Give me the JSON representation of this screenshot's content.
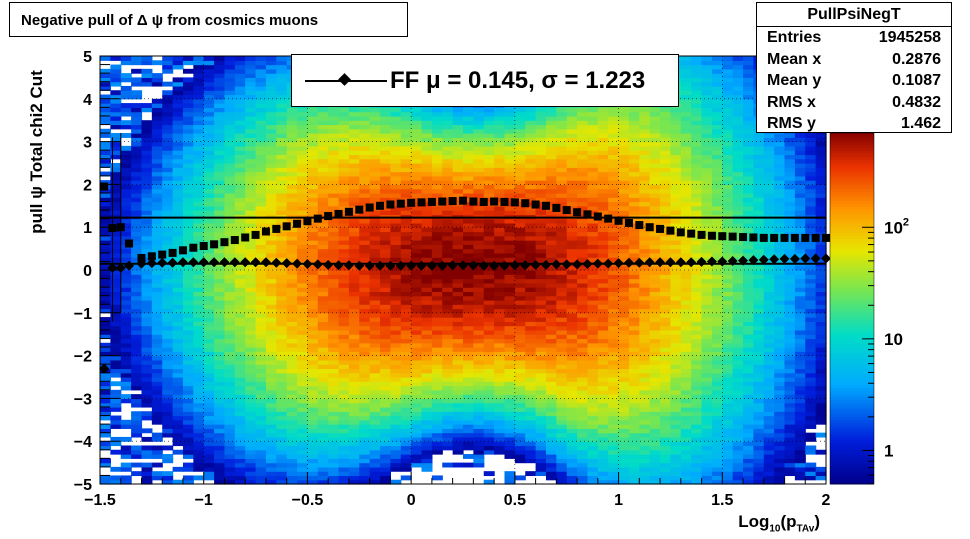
{
  "title": "Negative pull of Δ ψ from cosmics muons",
  "stats": {
    "name": "PullPsiNegT",
    "rows": [
      {
        "label": "Entries",
        "value": "1945258"
      },
      {
        "label": "Mean x",
        "value": "0.2876"
      },
      {
        "label": "Mean y",
        "value": "0.1087"
      },
      {
        "label": "RMS x",
        "value": "0.4832"
      },
      {
        "label": "RMS y",
        "value": "1.462"
      }
    ]
  },
  "legend": {
    "label": "FF μ =  0.145, σ =   1.223"
  },
  "axes": {
    "ylabel": "pull ψ    Total chi2 Cut",
    "xlabel_main": "Log",
    "xlabel_sub": "10",
    "xlabel_rest": "(p",
    "xlabel_sub2": "TAv",
    "xlabel_end": ")"
  },
  "chart_data": {
    "type": "heatmap",
    "xlim": [
      -1.5,
      2
    ],
    "ylim": [
      -5,
      5
    ],
    "x_ticks": [
      "−1.5",
      "−1",
      "−0.5",
      "0",
      "0.5",
      "1",
      "1.5",
      "2"
    ],
    "x_tick_values": [
      -1.5,
      -1,
      -0.5,
      0,
      0.5,
      1,
      1.5,
      2
    ],
    "y_ticks": [
      "−5",
      "−4",
      "−3",
      "−2",
      "−1",
      "0",
      "1",
      "2",
      "3",
      "4",
      "5"
    ],
    "y_tick_values": [
      -5,
      -4,
      -3,
      -2,
      -1,
      0,
      1,
      2,
      3,
      4,
      5
    ],
    "z_scale": "log",
    "z_range": [
      0.5,
      700
    ],
    "z_ticks": [
      {
        "value": 1,
        "label": "1"
      },
      {
        "value": 10,
        "label": "10"
      },
      {
        "value": 100,
        "label": "10",
        "sup": "2"
      }
    ],
    "grid": true,
    "profile_mean": {
      "marker": "diamond",
      "x": [
        -1.48,
        -1.44,
        -1.4,
        -1.36,
        -1.3,
        -1.25,
        -1.2,
        -1.15,
        -1.1,
        -1.05,
        -1.0,
        -0.95,
        -0.9,
        -0.85,
        -0.8,
        -0.75,
        -0.7,
        -0.65,
        -0.6,
        -0.55,
        -0.5,
        -0.45,
        -0.4,
        -0.35,
        -0.3,
        -0.25,
        -0.2,
        -0.15,
        -0.1,
        -0.05,
        0.0,
        0.05,
        0.1,
        0.15,
        0.2,
        0.25,
        0.3,
        0.35,
        0.4,
        0.45,
        0.5,
        0.55,
        0.6,
        0.65,
        0.7,
        0.75,
        0.8,
        0.85,
        0.9,
        0.95,
        1.0,
        1.05,
        1.1,
        1.15,
        1.2,
        1.25,
        1.3,
        1.35,
        1.4,
        1.45,
        1.5,
        1.55,
        1.6,
        1.65,
        1.7,
        1.75,
        1.8,
        1.85,
        1.9,
        1.95,
        2.0
      ],
      "y": [
        -2.3,
        0.05,
        0.05,
        0.1,
        0.15,
        0.16,
        0.17,
        0.17,
        0.18,
        0.18,
        0.18,
        0.18,
        0.18,
        0.18,
        0.18,
        0.18,
        0.18,
        0.17,
        0.16,
        0.15,
        0.14,
        0.13,
        0.12,
        0.11,
        0.11,
        0.1,
        0.1,
        0.1,
        0.1,
        0.1,
        0.1,
        0.1,
        0.1,
        0.1,
        0.11,
        0.11,
        0.11,
        0.1,
        0.1,
        0.1,
        0.11,
        0.11,
        0.12,
        0.12,
        0.13,
        0.13,
        0.13,
        0.14,
        0.15,
        0.15,
        0.16,
        0.17,
        0.17,
        0.18,
        0.18,
        0.18,
        0.18,
        0.18,
        0.19,
        0.2,
        0.2,
        0.21,
        0.22,
        0.23,
        0.24,
        0.25,
        0.26,
        0.26,
        0.27,
        0.27,
        0.27
      ]
    },
    "profile_rms": {
      "marker": "square",
      "x": [
        -1.48,
        -1.44,
        -1.4,
        -1.36,
        -1.3,
        -1.25,
        -1.2,
        -1.15,
        -1.1,
        -1.05,
        -1.0,
        -0.95,
        -0.9,
        -0.85,
        -0.8,
        -0.75,
        -0.7,
        -0.65,
        -0.6,
        -0.55,
        -0.5,
        -0.45,
        -0.4,
        -0.35,
        -0.3,
        -0.25,
        -0.2,
        -0.15,
        -0.1,
        -0.05,
        0.0,
        0.05,
        0.1,
        0.15,
        0.2,
        0.25,
        0.3,
        0.35,
        0.4,
        0.45,
        0.5,
        0.55,
        0.6,
        0.65,
        0.7,
        0.75,
        0.8,
        0.85,
        0.9,
        0.95,
        1.0,
        1.05,
        1.1,
        1.15,
        1.2,
        1.25,
        1.3,
        1.35,
        1.4,
        1.45,
        1.5,
        1.55,
        1.6,
        1.65,
        1.7,
        1.75,
        1.8,
        1.85,
        1.9,
        1.95,
        2.0
      ],
      "y": [
        1.95,
        0.98,
        1.0,
        0.62,
        0.28,
        0.32,
        0.36,
        0.4,
        0.46,
        0.52,
        0.56,
        0.6,
        0.65,
        0.7,
        0.76,
        0.82,
        0.9,
        0.96,
        1.02,
        1.08,
        1.14,
        1.2,
        1.26,
        1.31,
        1.36,
        1.41,
        1.46,
        1.5,
        1.53,
        1.55,
        1.57,
        1.58,
        1.59,
        1.6,
        1.61,
        1.62,
        1.6,
        1.59,
        1.6,
        1.59,
        1.58,
        1.56,
        1.53,
        1.5,
        1.45,
        1.4,
        1.35,
        1.3,
        1.25,
        1.2,
        1.15,
        1.1,
        1.05,
        1.0,
        0.96,
        0.92,
        0.88,
        0.85,
        0.82,
        0.8,
        0.79,
        0.78,
        0.77,
        0.76,
        0.75,
        0.75,
        0.75,
        0.75,
        0.75,
        0.75,
        0.75
      ]
    },
    "reference_lines": [
      1.223,
      0.145
    ]
  }
}
